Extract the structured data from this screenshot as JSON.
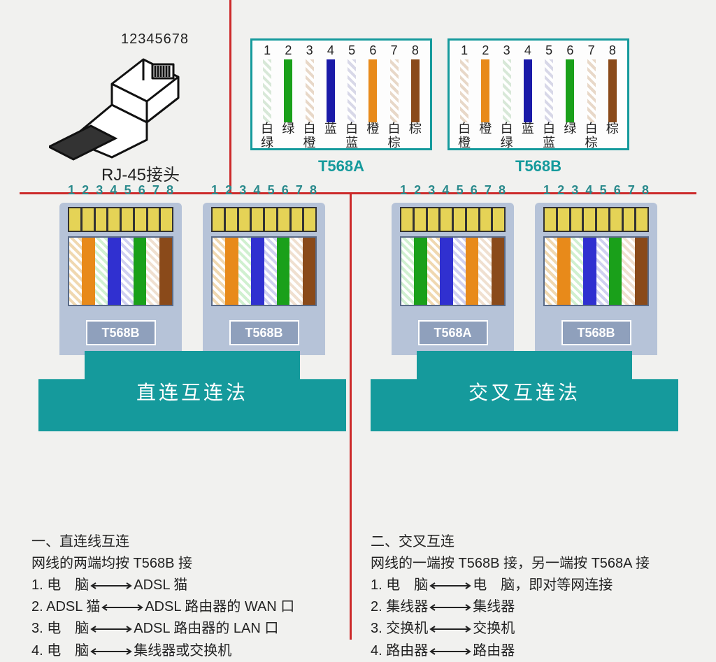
{
  "colors": {
    "accent": "#159a9c",
    "divider": "#cc2a2a",
    "background": "#f1f1ef",
    "connector_body": "#b6c3d8",
    "connector_badge_bg": "#8fa0bc",
    "gold_pin": "#e5d356",
    "text": "#222222"
  },
  "rj45": {
    "pin_numbers": "12345678",
    "caption": "RJ-45接头"
  },
  "standards": {
    "a": {
      "title": "T568A",
      "pins": [
        1,
        2,
        3,
        4,
        5,
        6,
        7,
        8
      ],
      "wire_colors": [
        "#d8e8d8",
        "#1aa01a",
        "#e8d8c8",
        "#1a1aa8",
        "#d8d8e8",
        "#e88a1a",
        "#e8d8c8",
        "#8a4a1a"
      ],
      "wire_striped": [
        true,
        false,
        true,
        false,
        true,
        false,
        true,
        false
      ],
      "labels_row1": [
        "白",
        "绿",
        "白",
        "蓝",
        "白",
        "橙",
        "白",
        "棕"
      ],
      "labels_row2": [
        "绿",
        "",
        "橙",
        "",
        "蓝",
        "",
        "棕",
        ""
      ]
    },
    "b": {
      "title": "T568B",
      "pins": [
        1,
        2,
        3,
        4,
        5,
        6,
        7,
        8
      ],
      "wire_colors": [
        "#e8d8c8",
        "#e88a1a",
        "#d8e8d8",
        "#1a1aa8",
        "#d8d8e8",
        "#1aa01a",
        "#e8d8c8",
        "#8a4a1a"
      ],
      "wire_striped": [
        true,
        false,
        true,
        false,
        true,
        false,
        true,
        false
      ],
      "labels_row1": [
        "白",
        "橙",
        "白",
        "蓝",
        "白",
        "绿",
        "白",
        "棕"
      ],
      "labels_row2": [
        "橙",
        "",
        "绿",
        "",
        "蓝",
        "",
        "棕",
        ""
      ]
    }
  },
  "connectors": {
    "pin_numbers": [
      "1",
      "2",
      "3",
      "4",
      "5",
      "6",
      "7",
      "8"
    ],
    "t568b_colors": [
      "#f0d8b0",
      "#e88a1a",
      "#d0f0d0",
      "#3030d0",
      "#d0d0f0",
      "#1aa01a",
      "#f0e0d0",
      "#8a4a1a"
    ],
    "t568a_colors": [
      "#d0f0d0",
      "#1aa01a",
      "#f0d8b0",
      "#3030d0",
      "#d0d0f0",
      "#e88a1a",
      "#f0e0d0",
      "#8a4a1a"
    ],
    "left": {
      "badges": [
        "T568B",
        "T568B"
      ],
      "cable_label": "直连互连法",
      "schemes": [
        "b",
        "b"
      ]
    },
    "right": {
      "badges": [
        "T568A",
        "T568B"
      ],
      "cable_label": "交叉互连法",
      "schemes": [
        "a",
        "b"
      ]
    }
  },
  "descriptions": {
    "left": {
      "header": "一、直连线互连",
      "subheader": "网线的两端均按 T568B 接",
      "items": [
        {
          "n": "1.",
          "l": "电　脑",
          "r": "ADSL 猫"
        },
        {
          "n": "2.",
          "l": "ADSL 猫",
          "r": "ADSL 路由器的 WAN 口"
        },
        {
          "n": "3.",
          "l": "电　脑",
          "r": "ADSL 路由器的 LAN 口"
        },
        {
          "n": "4.",
          "l": "电　脑",
          "r": "集线器或交换机"
        }
      ]
    },
    "right": {
      "header": "二、交叉互连",
      "subheader": "网线的一端按 T568B 接，另一端按 T568A 接",
      "items": [
        {
          "n": "1.",
          "l": "电　脑",
          "r": "电　脑，即对等网连接"
        },
        {
          "n": "2.",
          "l": "集线器",
          "r": "集线器"
        },
        {
          "n": "3.",
          "l": "交换机",
          "r": "交换机"
        },
        {
          "n": "4.",
          "l": "路由器",
          "r": "路由器"
        }
      ]
    }
  }
}
